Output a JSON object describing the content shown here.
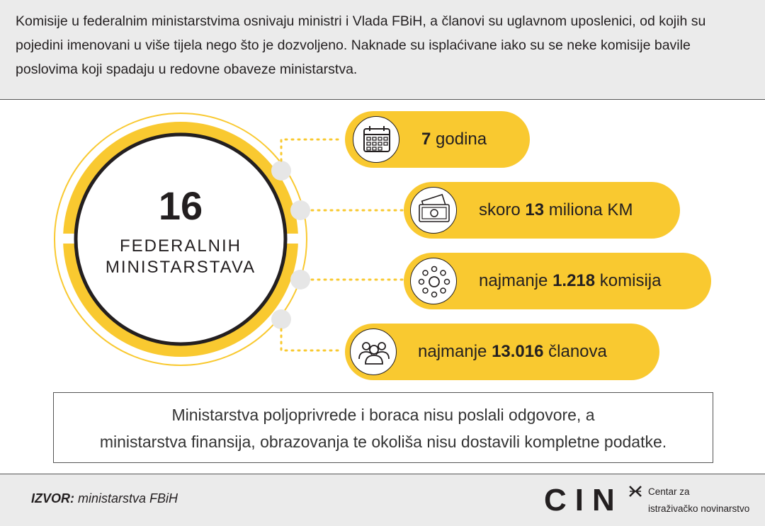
{
  "header": {
    "text": "Komisije u federalnim ministarstvima osnivaju ministri i Vlada FBiH, a članovi su uglavnom uposlenici, od kojih su pojedini imenovani u više tijela nego što je dozvoljeno. Naknade su isplaćivane iako su se neke komisije bavile poslovima koji spadaju u redovne obaveze ministarstva."
  },
  "center": {
    "number": "16",
    "label_line1": "FEDERALNIH",
    "label_line2": "MINISTARSTAVA"
  },
  "stats": [
    {
      "prefix": "",
      "bold": "7",
      "suffix": " godina",
      "icon": "calendar-icon"
    },
    {
      "prefix": "skoro ",
      "bold": "13",
      "suffix": " miliona KM",
      "icon": "money-icon"
    },
    {
      "prefix": "najmanje ",
      "bold": "1.218",
      "suffix": " komisija",
      "icon": "network-icon"
    },
    {
      "prefix": "najmanje ",
      "bold": "13.016",
      "suffix": " članova",
      "icon": "people-icon"
    }
  ],
  "note": {
    "line1": "Ministarstva poljoprivrede i boraca nisu poslali odgovore, a",
    "line2": "ministarstva finansija, obrazovanja te okoliša nisu dostavili kompletne podatke."
  },
  "footer": {
    "source_label": "IZVOR:",
    "source_text": " ministarstva FBiH",
    "logo": "CIN",
    "logo_sub1": "Centar za",
    "logo_sub2": "istraživačko novinarstvo"
  },
  "colors": {
    "accent": "#f9c930",
    "dark": "#231f20",
    "dot_grey": "#e6e6e6",
    "header_bg": "#ebebeb"
  }
}
